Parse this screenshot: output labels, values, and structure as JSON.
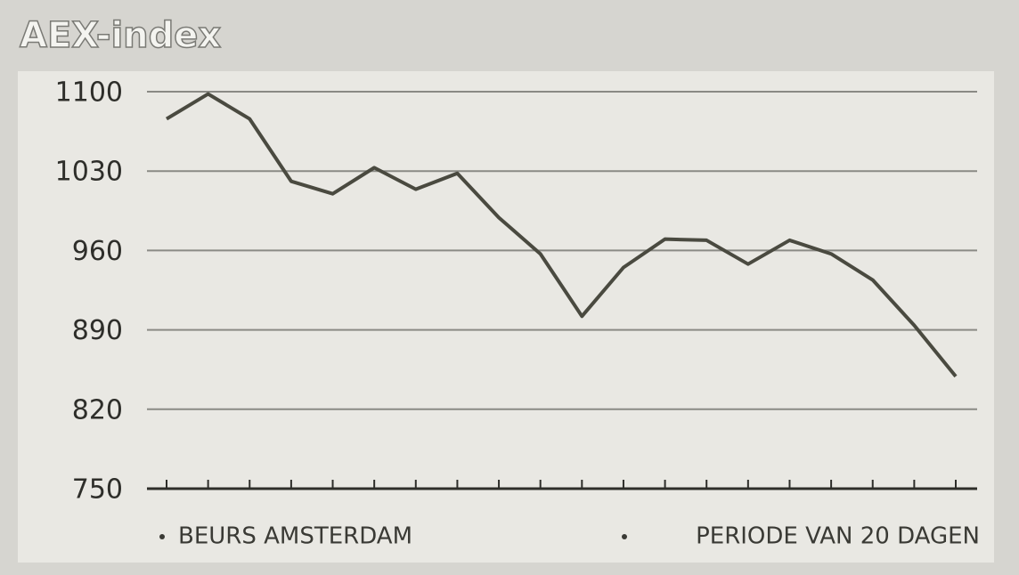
{
  "chart_data": {
    "type": "line",
    "title": "AEX-index",
    "categories": [
      null,
      null,
      null,
      null,
      null,
      null,
      null,
      null,
      null,
      null,
      null,
      null,
      null,
      null,
      null,
      null,
      null,
      null,
      null,
      null
    ],
    "values": [
      1076,
      1098,
      1076,
      1021,
      1010,
      1033,
      1014,
      1028,
      989,
      957,
      902,
      945,
      970,
      969,
      948,
      969,
      957,
      934,
      894,
      849
    ],
    "color": "#4a4a40",
    "ylim": [
      750,
      1100
    ],
    "yticks": [
      750,
      820,
      890,
      960,
      1030,
      1100
    ],
    "grid": true,
    "notes": [
      "BEURS AMSTERDAM",
      "PERIODE VAN 20 DAGEN"
    ]
  }
}
